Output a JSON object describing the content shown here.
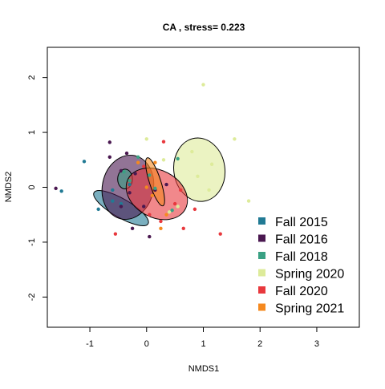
{
  "chart_data": {
    "type": "scatter",
    "title": "CA , stress= 0.223",
    "xlabel": "NMDS1",
    "ylabel": "NMDS2",
    "xlim": [
      -1.75,
      3.75
    ],
    "ylim": [
      -2.55,
      2.55
    ],
    "x_ticks": [
      -1,
      0,
      1,
      2,
      3
    ],
    "y_ticks": [
      -2,
      -1,
      0,
      1,
      2
    ],
    "x_tick_labels": [
      "-1",
      "0",
      "1",
      "2",
      "3"
    ],
    "y_tick_labels": [
      "-2",
      "-1",
      "0",
      "1",
      "2"
    ],
    "grid": false,
    "legend_position": "bottom-right",
    "series": [
      {
        "name": "Fall 2015",
        "color": "#217a94",
        "points": [
          [
            -1.5,
            -0.07
          ],
          [
            -1.1,
            0.47
          ],
          [
            -0.85,
            -0.4
          ],
          [
            -0.45,
            -0.3
          ],
          [
            -0.6,
            -0.05
          ],
          [
            -0.3,
            0.05
          ],
          [
            -0.6,
            -0.25
          ]
        ],
        "ellipse": {
          "cx": -0.45,
          "cy": -0.38,
          "rx": 0.55,
          "ry": 0.17,
          "angle_deg": -30
        }
      },
      {
        "name": "Fall 2016",
        "color": "#4a1850",
        "points": [
          [
            -1.6,
            -0.02
          ],
          [
            -0.65,
            0.82
          ],
          [
            -0.35,
            0.62
          ],
          [
            -0.65,
            0.55
          ],
          [
            -0.45,
            0.3
          ],
          [
            -0.2,
            0.25
          ],
          [
            -0.05,
            -0.35
          ],
          [
            0.05,
            -0.9
          ],
          [
            0.35,
            0.05
          ],
          [
            0.15,
            -0.05
          ],
          [
            -0.25,
            -0.75
          ],
          [
            -0.45,
            -0.35
          ],
          [
            -0.3,
            -0.1
          ]
        ],
        "ellipse": {
          "cx": -0.33,
          "cy": 0.0,
          "rx": 0.45,
          "ry": 0.59,
          "angle_deg": -12
        }
      },
      {
        "name": "Fall 2018",
        "color": "#3aa184",
        "points": [
          [
            -0.4,
            0.28
          ],
          [
            -0.3,
            0.12
          ],
          [
            -0.15,
            0.55
          ],
          [
            0.05,
            0.22
          ],
          [
            0.15,
            -0.02
          ],
          [
            0.45,
            -0.42
          ],
          [
            0.55,
            0.52
          ]
        ],
        "ellipse": {
          "cx": -0.38,
          "cy": 0.15,
          "rx": 0.13,
          "ry": 0.18,
          "angle_deg": 0
        }
      },
      {
        "name": "Spring 2020",
        "color": "#ddeb9a",
        "points": [
          [
            1.0,
            1.87
          ],
          [
            1.55,
            0.88
          ],
          [
            0.0,
            0.88
          ],
          [
            1.8,
            -0.25
          ],
          [
            0.8,
            0.65
          ],
          [
            1.15,
            0.42
          ],
          [
            1.1,
            -0.05
          ],
          [
            0.9,
            0.2
          ],
          [
            0.3,
            0.5
          ],
          [
            0.4,
            -0.45
          ],
          [
            0.55,
            -0.35
          ]
        ],
        "ellipse": {
          "cx": 0.93,
          "cy": 0.32,
          "rx": 0.45,
          "ry": 0.58,
          "angle_deg": 8
        }
      },
      {
        "name": "Fall 2020",
        "color": "#e8383d",
        "points": [
          [
            -0.55,
            -0.85
          ],
          [
            0.3,
            0.83
          ],
          [
            0.6,
            -0.05
          ],
          [
            0.85,
            -0.4
          ],
          [
            1.3,
            -0.85
          ],
          [
            0.65,
            -0.75
          ],
          [
            0.25,
            -0.62
          ],
          [
            -0.05,
            0.38
          ],
          [
            0.05,
            -0.5
          ],
          [
            0.5,
            -0.3
          ]
        ],
        "ellipse": {
          "cx": 0.18,
          "cy": -0.12,
          "rx": 0.57,
          "ry": 0.43,
          "angle_deg": -28
        }
      },
      {
        "name": "Spring 2021",
        "color": "#f5891f",
        "points": [
          [
            -0.15,
            0.45
          ],
          [
            0.0,
            0.0
          ],
          [
            0.25,
            -0.75
          ],
          [
            0.15,
            0.45
          ],
          [
            0.35,
            -0.5
          ],
          [
            0.1,
            -0.15
          ]
        ],
        "ellipse": {
          "cx": 0.15,
          "cy": 0.1,
          "rx": 0.1,
          "ry": 0.46,
          "angle_deg": 18
        }
      }
    ]
  }
}
